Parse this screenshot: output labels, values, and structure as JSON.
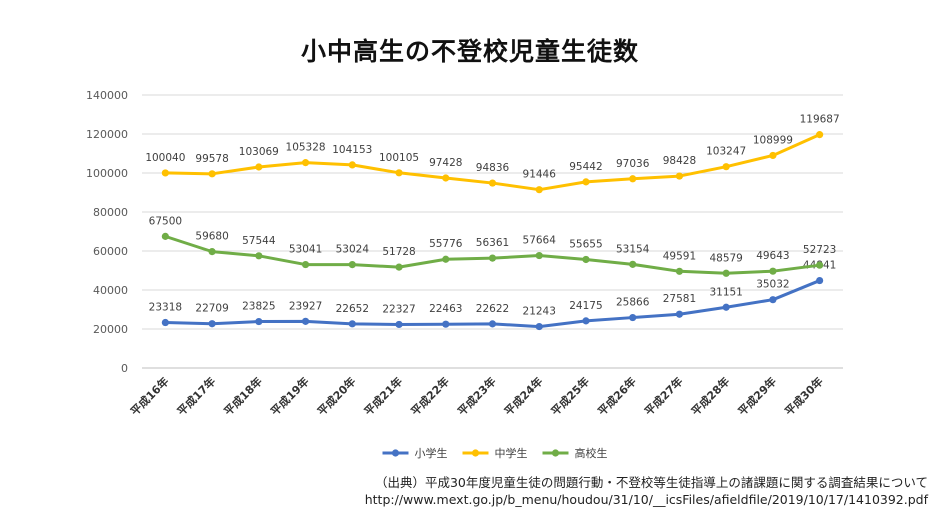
{
  "chart_data": {
    "type": "line",
    "title": "小中高生の不登校児童生徒数",
    "categories": [
      "平成16年",
      "平成17年",
      "平成18年",
      "平成19年",
      "平成20年",
      "平成21年",
      "平成22年",
      "平成23年",
      "平成24年",
      "平成25年",
      "平成26年",
      "平成27年",
      "平成28年",
      "平成29年",
      "平成30年"
    ],
    "ylim": [
      0,
      140000
    ],
    "yticks": [
      "0",
      "20000",
      "40000",
      "60000",
      "80000",
      "100000",
      "120000",
      "140000"
    ],
    "grid": true,
    "legend_position": "bottom",
    "series": [
      {
        "name": "小学生",
        "color": "#4472c4",
        "values": [
          23318,
          22709,
          23825,
          23927,
          22652,
          22327,
          22463,
          22622,
          21243,
          24175,
          25866,
          27581,
          31151,
          35032,
          44841
        ]
      },
      {
        "name": "中学生",
        "color": "#ffc000",
        "values": [
          100040,
          99578,
          103069,
          105328,
          104153,
          100105,
          97428,
          94836,
          91446,
          95442,
          97036,
          98428,
          103247,
          108999,
          119687
        ]
      },
      {
        "name": "高校生",
        "color": "#70ad47",
        "values": [
          67500,
          59680,
          57544,
          53041,
          53024,
          51728,
          55776,
          56361,
          57664,
          55655,
          53154,
          49591,
          48579,
          49643,
          52723
        ]
      }
    ]
  },
  "source": {
    "line1": "（出典）平成30年度児童生徒の問題行動・不登校等生徒指導上の諸課題に関する調査結果について",
    "line2": "http://www.mext.go.jp/b_menu/houdou/31/10/__icsFiles/afieldfile/2019/10/17/1410392.pdf"
  }
}
